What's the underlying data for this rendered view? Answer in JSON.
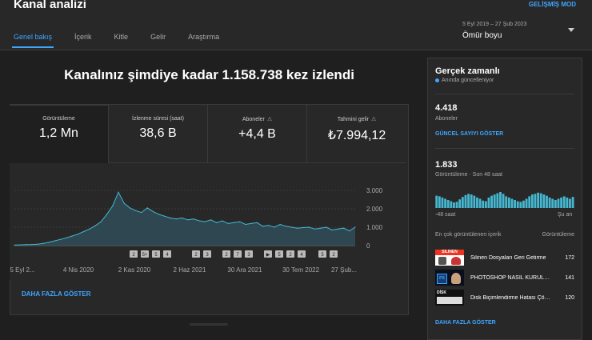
{
  "header": {
    "title": "Kanal analizi",
    "advanced_mode": "GELİŞMİŞ MOD",
    "tabs": [
      "Genel bakış",
      "İçerik",
      "Kitle",
      "Gelir",
      "Araştırma"
    ],
    "date_range": "5 Eyl 2019 – 27 Şub 2023",
    "period": "Ömür boyu"
  },
  "main": {
    "headline": "Kanalınız şimdiye kadar 1.158.738 kez izlendi",
    "metrics": [
      {
        "label": "Görüntüleme",
        "value": "1,2 Mn"
      },
      {
        "label": "İzlenme süresi (saat)",
        "value": "38,6 B"
      },
      {
        "label": "Aboneler",
        "value": "+4,4 B",
        "warn": "⚠"
      },
      {
        "label": "Tahmini gelir",
        "value": "₺7.994,12",
        "warn": "⚠"
      }
    ],
    "show_more": "DAHA FAZLA GÖSTER"
  },
  "chart_data": {
    "type": "area",
    "title": "Görüntüleme",
    "x_tick_labels": [
      "5 Eyl 2...",
      "4 Nis 2020",
      "2 Kas 2020",
      "2 Haz 2021",
      "30 Ara 2021",
      "30 Tem 2022",
      "27 Şub..."
    ],
    "y_tick_labels": [
      "3.000",
      "2.000",
      "1.000",
      "0"
    ],
    "ylim": [
      0,
      3000
    ],
    "series": [
      {
        "name": "Görüntüleme",
        "color": "#45b7d1",
        "values": [
          30,
          40,
          50,
          60,
          80,
          120,
          180,
          260,
          340,
          420,
          520,
          620,
          760,
          900,
          1080,
          1300,
          1700,
          2150,
          2900,
          2300,
          2050,
          1900,
          1800,
          2050,
          1850,
          1700,
          1600,
          1500,
          1450,
          1500,
          1400,
          1450,
          1350,
          1300,
          1400,
          1250,
          1350,
          1200,
          1250,
          1300,
          1150,
          1200,
          1250,
          1050,
          1100,
          1000,
          1150,
          1050,
          1000,
          950,
          980,
          1000,
          900,
          950,
          1000,
          850,
          900,
          950,
          800,
          1000
        ]
      }
    ],
    "event_markers": [
      "2",
      "5+",
      "5",
      "4",
      "2",
      "3",
      "2",
      "7",
      "3",
      "▶",
      "5",
      "2",
      "4",
      "5",
      "2"
    ]
  },
  "realtime": {
    "title": "Gerçek zamanlı",
    "subtitle": "Anında güncelleniyor",
    "subscribers": "4.418",
    "subscribers_label": "Aboneler",
    "live_count_link": "GÜNCEL SAYIYI GÖSTER",
    "views_48h": "1.833",
    "views_48h_label": "Görüntüleme · Son 48 saat",
    "axis_left": "-48 saat",
    "axis_right": "Şu an",
    "hourly_views": [
      40,
      38,
      34,
      30,
      26,
      22,
      18,
      20,
      28,
      36,
      42,
      46,
      44,
      40,
      34,
      30,
      24,
      22,
      34,
      40,
      44,
      48,
      52,
      46,
      38,
      34,
      30,
      26,
      22,
      20,
      24,
      30,
      38,
      44,
      46,
      50,
      48,
      44,
      40,
      34,
      30,
      26,
      30,
      34,
      38,
      34,
      30,
      36
    ],
    "top_content_header": "En çok görüntülenen içerik",
    "top_content_metric": "Görüntüleme",
    "top_videos": [
      {
        "title": "Silinen Dosyaları Geri Getirme",
        "views": "172",
        "thumb_text": "SİLİNEN"
      },
      {
        "title": "PHOTOSHOP NASIL KURULUR",
        "views": "141",
        "thumb_text": "PS"
      },
      {
        "title": "Disk Biçimlendirme Hatası Çözümü",
        "views": "120",
        "thumb_text": "DİSK"
      }
    ],
    "show_more": "DAHA FAZLA GÖSTER"
  }
}
